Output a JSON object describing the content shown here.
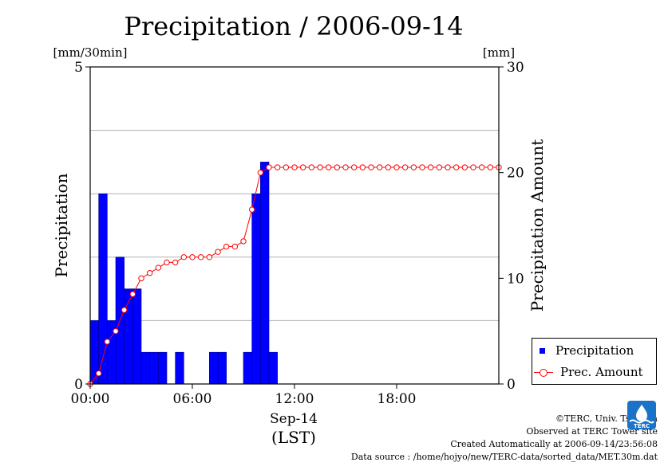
{
  "header": {
    "title": "Precipitation / 2006-09-14"
  },
  "chart_data": {
    "type": "bar",
    "title": "Precipitation / 2006-09-14",
    "left_axis": {
      "label": "Precipitation",
      "unit": "[mm/30min]",
      "range": [
        0,
        5
      ],
      "ticks": [
        "0",
        "5"
      ]
    },
    "right_axis": {
      "label": "Precipitation Amount",
      "unit": "[mm]",
      "range": [
        0,
        30
      ],
      "ticks": [
        "0",
        "10",
        "20",
        "30"
      ]
    },
    "x_axis": {
      "range_hours": [
        0,
        24
      ],
      "ticks": [
        "00:00",
        "06:00",
        "12:00",
        "18:00"
      ],
      "date_label": "Sep-14",
      "zone_label": "(LST)"
    },
    "grid": true,
    "series": [
      {
        "name": "Precipitation",
        "type": "bar",
        "color": "#0000ff",
        "interval_minutes": 30,
        "values": [
          1.0,
          3.0,
          1.0,
          2.0,
          1.5,
          1.5,
          0.5,
          0.5,
          0.5,
          0,
          0.5,
          0,
          0,
          0,
          0.5,
          0.5,
          0,
          0,
          0.5,
          3.0,
          3.5,
          0.5,
          0,
          0,
          0,
          0,
          0,
          0,
          0,
          0,
          0,
          0,
          0,
          0,
          0,
          0,
          0,
          0,
          0,
          0,
          0,
          0,
          0,
          0,
          0,
          0,
          0,
          0
        ]
      },
      {
        "name": "Prec. Amount",
        "type": "line",
        "color": "#ff0000",
        "interval_minutes": 30,
        "values": [
          0.0,
          1.0,
          4.0,
          5.0,
          7.0,
          8.5,
          10.0,
          10.5,
          11.0,
          11.5,
          11.5,
          12.0,
          12.0,
          12.0,
          12.0,
          12.5,
          13.0,
          13.0,
          13.5,
          16.5,
          20.0,
          20.5,
          20.5,
          20.5,
          20.5,
          20.5,
          20.5,
          20.5,
          20.5,
          20.5,
          20.5,
          20.5,
          20.5,
          20.5,
          20.5,
          20.5,
          20.5,
          20.5,
          20.5,
          20.5,
          20.5,
          20.5,
          20.5,
          20.5,
          20.5,
          20.5,
          20.5,
          20.5,
          20.5
        ]
      }
    ],
    "legend": {
      "position": "bottom-right"
    }
  },
  "credits": {
    "line1": "©TERC, Univ. Tsukuba",
    "line2": "Observed at TERC Tower site",
    "line3": "Created Automatically at 2006-09-14/23:56:08",
    "line4": "Data source : /home/hojyo/new/TERC-data/sorted_data/MET.30m.dat"
  },
  "logo": {
    "text": "TERC",
    "icon": "terc-logo-icon",
    "color": "#1a73c8"
  }
}
